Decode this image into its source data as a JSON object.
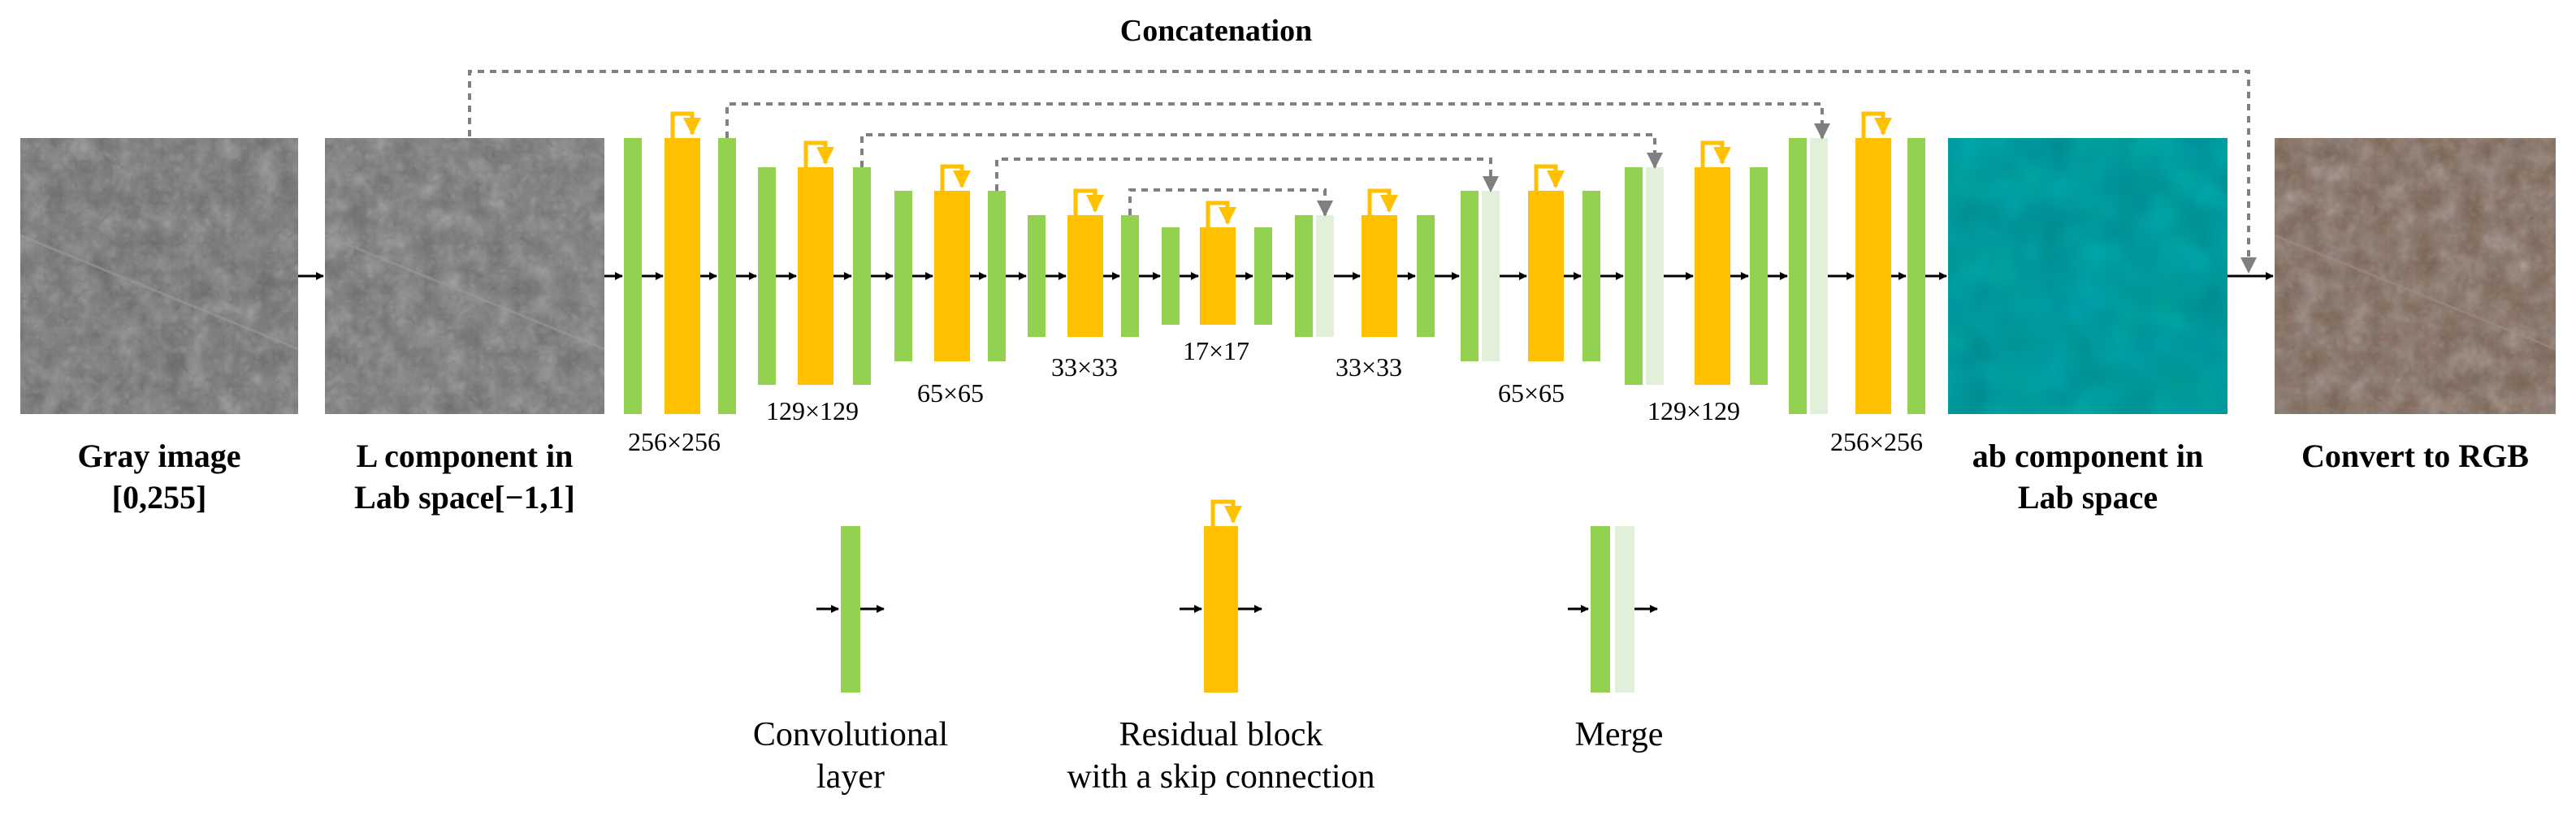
{
  "title": "Concatenation",
  "panels": {
    "gray_image": {
      "line1": "Gray image",
      "line2": "[0,255]"
    },
    "l_component": {
      "line1": "L component in",
      "line2": "Lab space[−1,1]"
    },
    "ab_component": {
      "line1": "ab component in",
      "line2": "Lab space"
    },
    "convert": {
      "line1": "Convert to RGB"
    }
  },
  "resolution_labels": [
    "256×256",
    "129×129",
    "65×65",
    "33×33",
    "17×17",
    "33×33",
    "65×65",
    "129×129",
    "256×256"
  ],
  "legend": {
    "conv": {
      "line1": "Convolutional",
      "line2": "layer"
    },
    "residual": {
      "line1": "Residual block",
      "line2": "with a skip connection"
    },
    "merge": {
      "line1": "Merge"
    }
  },
  "colors": {
    "conv_green": "#92d050",
    "residual_orange": "#ffc000",
    "merge_light": "#e2efd9",
    "teal": "#00898c",
    "arrow_gray": "#7f7f7f"
  }
}
